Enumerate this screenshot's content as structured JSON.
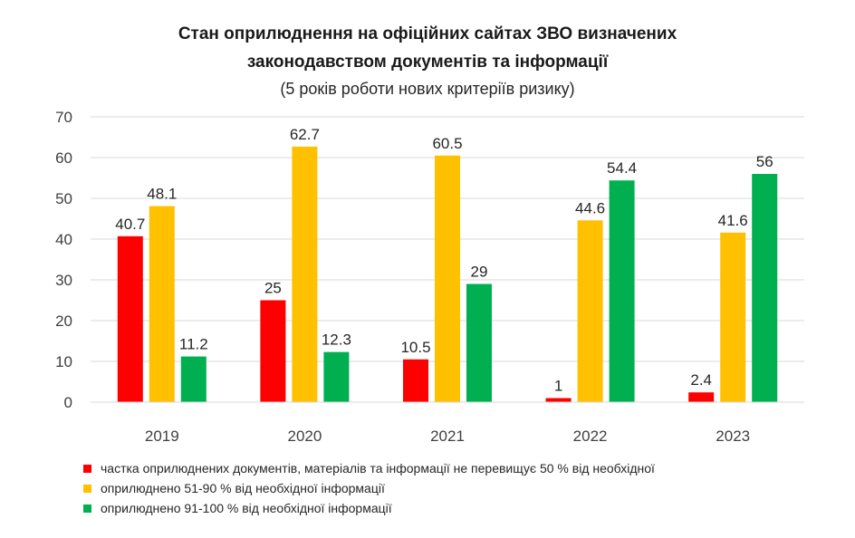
{
  "chart_data": {
    "type": "bar",
    "title_lines": [
      "Стан оприлюднення на офіційних сайтах ЗВО визначених",
      "законодавством документів та інформації"
    ],
    "subtitle": "(5 років роботи нових критеріїв ризику)",
    "categories": [
      "2019",
      "2020",
      "2021",
      "2022",
      "2023"
    ],
    "series": [
      {
        "name": "частка оприлюднених документів, матеріалів та інформації не перевищує 50 % від необхідної",
        "color": "#ff0000",
        "values": [
          40.7,
          25,
          10.5,
          1,
          2.4
        ],
        "labels": [
          "40.7",
          "25",
          "10.5",
          "1",
          "2.4"
        ]
      },
      {
        "name": "оприлюднено 51-90 % від необхідної інформації",
        "color": "#ffc000",
        "values": [
          48.1,
          62.7,
          60.5,
          44.6,
          41.6
        ],
        "labels": [
          "48.1",
          "62.7",
          "60.5",
          "44.6",
          "41.6"
        ]
      },
      {
        "name": "оприлюднено 91-100 % від необхідної інформації",
        "color": "#00b050",
        "values": [
          11.2,
          12.3,
          29,
          54.4,
          56
        ],
        "labels": [
          "11.2",
          "12.3",
          "29",
          "54.4",
          "56"
        ]
      }
    ],
    "ylim": [
      0,
      70
    ],
    "yticks": [
      "0",
      "10",
      "20",
      "30",
      "40",
      "50",
      "60",
      "70"
    ],
    "grid": true,
    "legend_position": "bottom"
  }
}
